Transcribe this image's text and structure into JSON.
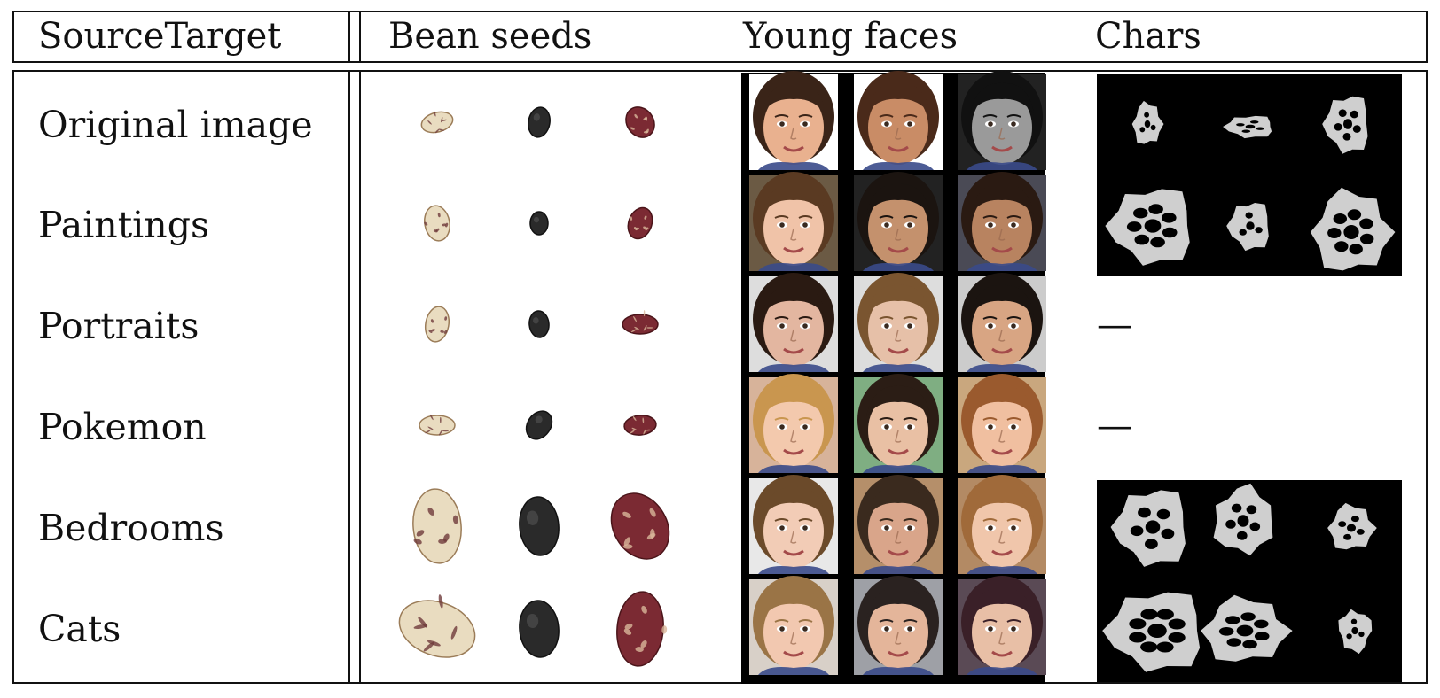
{
  "table": {
    "header": {
      "source_target": "SourceTarget",
      "columns": [
        "Bean seeds",
        "Young faces",
        "Chars"
      ]
    },
    "rows": [
      {
        "label": "Original image",
        "chars": "image"
      },
      {
        "label": "Paintings",
        "chars": "image"
      },
      {
        "label": "Portraits",
        "chars": "—"
      },
      {
        "label": "Pokemon",
        "chars": "—"
      },
      {
        "label": "Bedrooms",
        "chars": "image"
      },
      {
        "label": "Cats",
        "chars": "image"
      }
    ]
  },
  "colors": {
    "rule": "#111111",
    "char_background": "#000000",
    "char_blob": "#cfcfcf",
    "face_background": "#000000"
  },
  "bean_types": [
    "speckled-cream",
    "black",
    "speckled-maroon"
  ]
}
